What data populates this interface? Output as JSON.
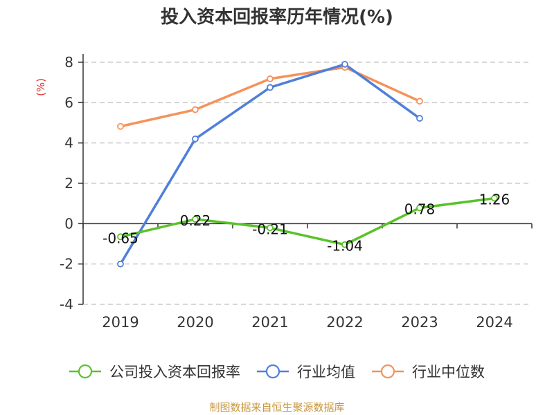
{
  "chart_data": {
    "type": "line",
    "title": "投入资本回报率历年情况(%)",
    "ylabel": "(%)",
    "xlabel": "",
    "categories": [
      "2019",
      "2020",
      "2021",
      "2022",
      "2023",
      "2024"
    ],
    "ylim": [
      -4,
      8
    ],
    "yticks": [
      8,
      6,
      4,
      2,
      0,
      -2,
      -4
    ],
    "grid": true,
    "legend": "bottom",
    "series": [
      {
        "name": "公司投入资本回报率",
        "color": "#5ac229",
        "values": [
          -0.65,
          0.22,
          -0.21,
          -1.04,
          0.78,
          1.26
        ],
        "labels": [
          "-0.65",
          "0.22",
          "-0.21",
          "-1.04",
          "0.78",
          "1.26"
        ]
      },
      {
        "name": "行业均值",
        "color": "#4f7fd9",
        "values": [
          -2.0,
          4.2,
          6.75,
          7.9,
          5.22,
          null
        ]
      },
      {
        "name": "行业中位数",
        "color": "#f5925a",
        "values": [
          4.82,
          5.65,
          7.18,
          7.75,
          6.07,
          null
        ]
      }
    ]
  },
  "source": "制图数据来自恒生聚源数据库"
}
